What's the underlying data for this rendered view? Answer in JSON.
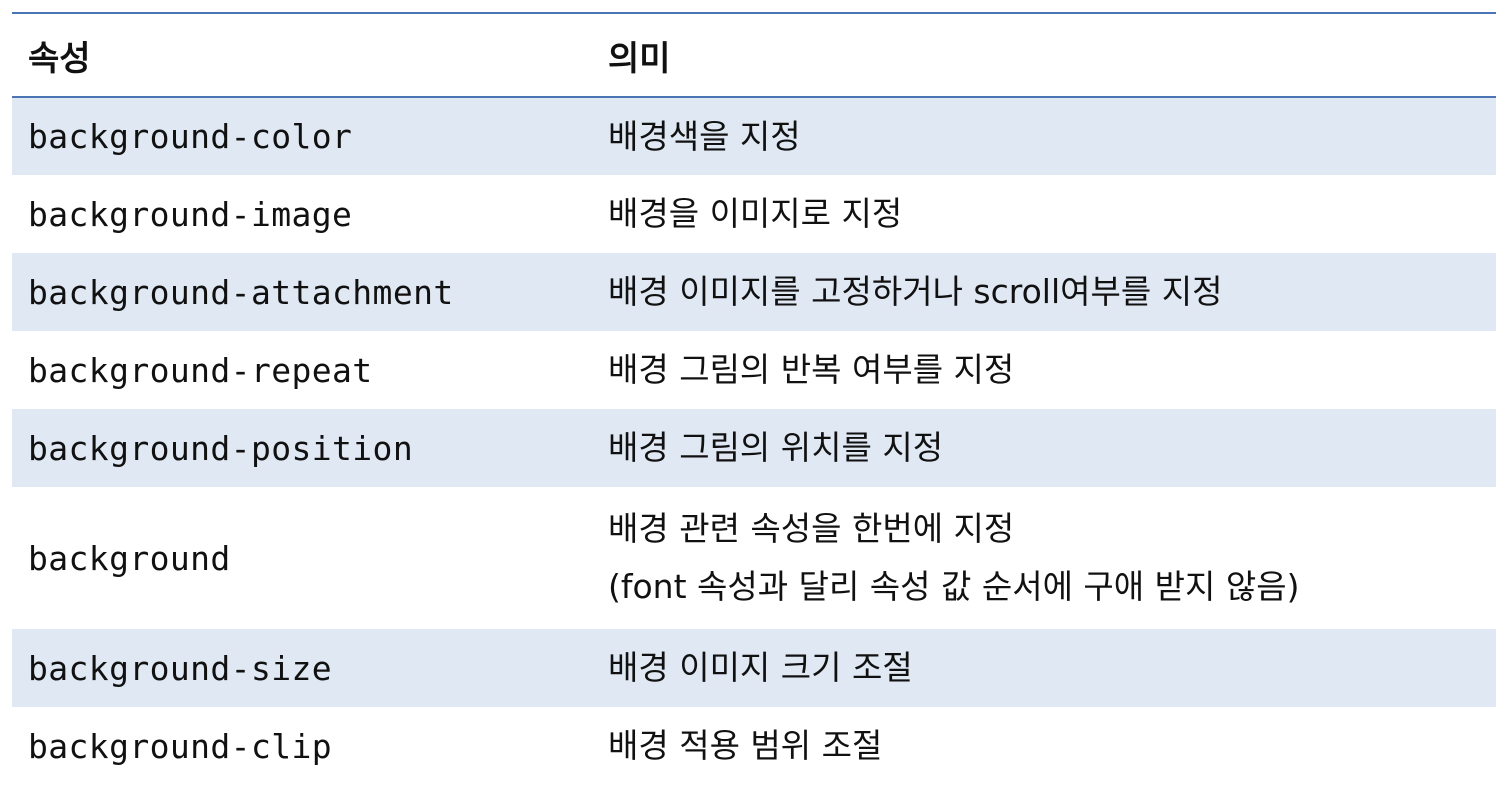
{
  "table": {
    "headers": [
      "속성",
      "의미"
    ],
    "rows": [
      {
        "property": "background-color",
        "meaning": [
          "배경색을 지정"
        ]
      },
      {
        "property": "background-image",
        "meaning": [
          "배경을 이미지로 지정"
        ]
      },
      {
        "property": "background-attachment",
        "meaning": [
          "배경 이미지를 고정하거나 scroll여부를 지정"
        ]
      },
      {
        "property": "background-repeat",
        "meaning": [
          "배경 그림의 반복 여부를 지정"
        ]
      },
      {
        "property": "background-position",
        "meaning": [
          "배경 그림의 위치를 지정"
        ]
      },
      {
        "property": "background",
        "meaning": [
          "배경 관련 속성을 한번에 지정",
          "(font 속성과 달리 속성 값 순서에 구애 받지 않음)"
        ]
      },
      {
        "property": "background-size",
        "meaning": [
          "배경 이미지 크기 조절"
        ]
      },
      {
        "property": "background-clip",
        "meaning": [
          "배경 적용 범위 조절"
        ]
      }
    ]
  },
  "colors": {
    "header_rule": "#4a74b4",
    "row_shade": "#dfe8f3",
    "text": "#111111"
  }
}
